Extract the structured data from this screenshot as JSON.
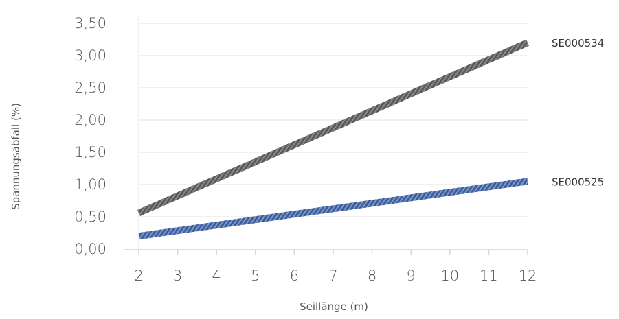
{
  "chart_data": {
    "type": "line",
    "title": "",
    "xlabel": "Seillänge (m)",
    "ylabel": "Spannungsabfall (%)",
    "x": [
      2,
      3,
      4,
      5,
      6,
      7,
      8,
      9,
      10,
      11,
      12
    ],
    "x_tick_labels": [
      "2",
      "3",
      "4",
      "5",
      "6",
      "7",
      "8",
      "9",
      "10",
      "11",
      "12"
    ],
    "xlim": [
      2,
      12
    ],
    "ylim": [
      0,
      3.5
    ],
    "y_ticks": [
      0,
      0.5,
      1,
      1.5,
      2,
      2.5,
      3,
      3.5
    ],
    "y_tick_labels": [
      "0,00",
      "0,50",
      "1,00",
      "1,50",
      "2,00",
      "2,50",
      "3,00",
      "3,50"
    ],
    "grid": "horizontal",
    "legend": "inline-right",
    "series": [
      {
        "name": "SE000534",
        "color": "#4a4a4a",
        "values": [
          0.56,
          0.824,
          1.088,
          1.352,
          1.616,
          1.88,
          2.144,
          2.408,
          2.672,
          2.936,
          3.2
        ]
      },
      {
        "name": "SE000525",
        "color": "#4a6aa5",
        "values": [
          0.2,
          0.285,
          0.37,
          0.455,
          0.54,
          0.625,
          0.71,
          0.795,
          0.88,
          0.965,
          1.05
        ]
      }
    ]
  }
}
